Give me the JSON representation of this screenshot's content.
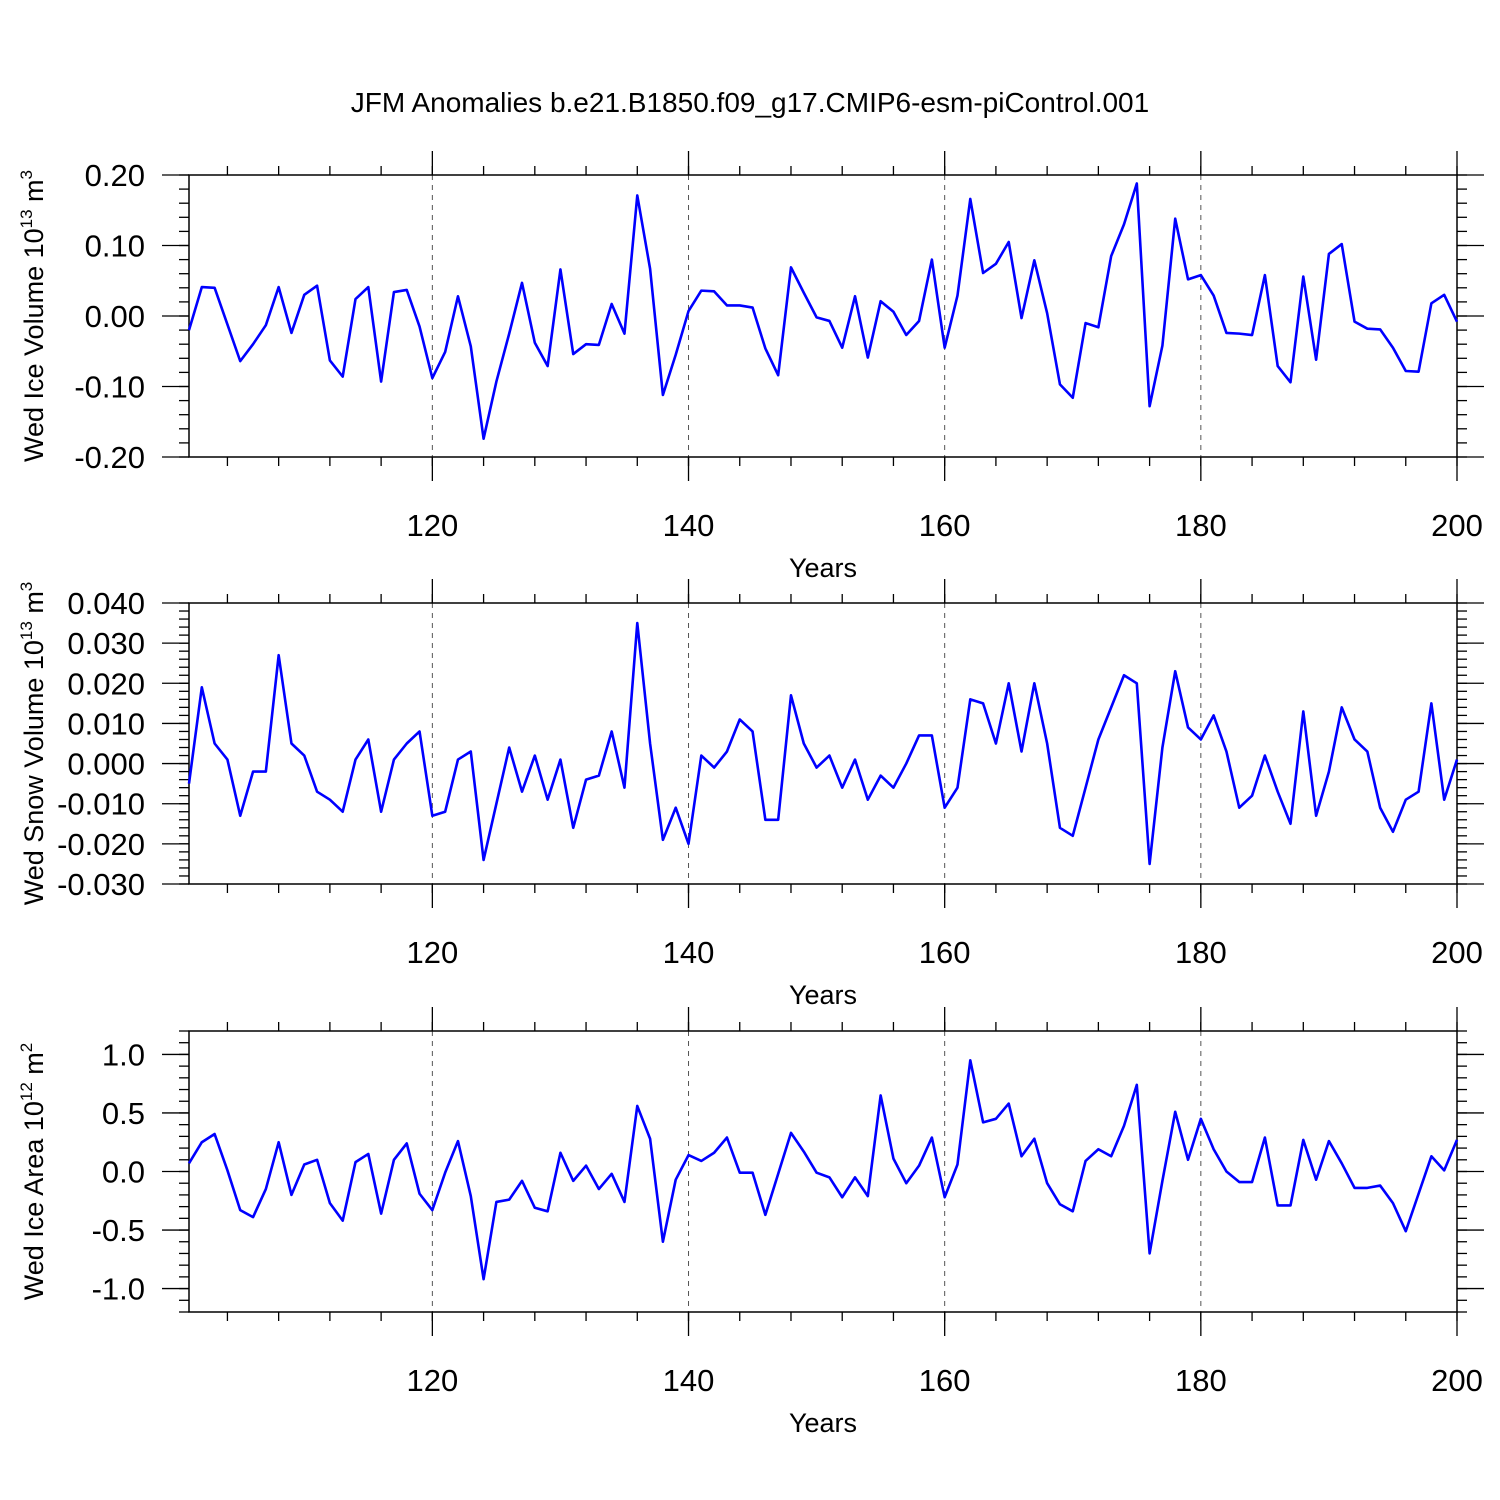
{
  "title": "JFM Anomalies b.e21.B1850.f09_g17.CMIP6-esm-piControl.001",
  "line_color": "#0000ff",
  "chart_data": [
    {
      "type": "line",
      "name": "ice-volume",
      "ylabel": "Wed Ice Volume 10",
      "ylabel_exp": "13",
      "ylabel_unit": " m",
      "ylabel_unit_exp": "3",
      "xlabel": "Years",
      "xlim": [
        101,
        200
      ],
      "ylim": [
        -0.2,
        0.2
      ],
      "yticks": [
        -0.2,
        -0.1,
        0.0,
        0.1,
        0.2
      ],
      "ytick_labels": [
        "-0.20",
        "-0.10",
        "0.00",
        "0.10",
        "0.20"
      ],
      "yminor_step": 0.02,
      "xticks": [
        120,
        140,
        160,
        180,
        200
      ],
      "xtick_labels": [
        "120",
        "140",
        "160",
        "180",
        "200"
      ],
      "xminor_step": 4,
      "grid_x": [
        120,
        140,
        160,
        180
      ],
      "x_start": 101,
      "values": [
        -0.02,
        0.041,
        0.04,
        -0.012,
        -0.064,
        -0.04,
        -0.013,
        0.041,
        -0.024,
        0.03,
        0.043,
        -0.063,
        -0.086,
        0.024,
        0.041,
        -0.093,
        0.034,
        0.037,
        -0.015,
        -0.088,
        -0.051,
        0.028,
        -0.043,
        -0.174,
        -0.093,
        -0.025,
        0.047,
        -0.038,
        -0.071,
        0.066,
        -0.054,
        -0.04,
        -0.041,
        0.017,
        -0.025,
        0.171,
        0.067,
        -0.112,
        -0.055,
        0.007,
        0.036,
        0.035,
        0.015,
        0.015,
        0.012,
        -0.046,
        -0.084,
        0.069,
        0.033,
        -0.002,
        -0.007,
        -0.045,
        0.028,
        -0.059,
        0.021,
        0.006,
        -0.027,
        -0.007,
        0.08,
        -0.045,
        0.029,
        0.166,
        0.061,
        0.074,
        0.105,
        -0.003,
        0.079,
        0.004,
        -0.097,
        -0.116,
        -0.01,
        -0.016,
        0.085,
        0.13,
        0.188,
        -0.128,
        -0.042,
        0.138,
        0.052,
        0.058,
        0.029,
        -0.024,
        -0.025,
        -0.027,
        0.058,
        -0.071,
        -0.094,
        0.056,
        -0.062,
        0.088,
        0.102,
        -0.008,
        -0.018,
        -0.019,
        -0.045,
        -0.078,
        -0.079,
        0.018,
        0.03,
        -0.008
      ]
    },
    {
      "type": "line",
      "name": "snow-volume",
      "ylabel": "Wed Snow Volume 10",
      "ylabel_exp": "13",
      "ylabel_unit": " m",
      "ylabel_unit_exp": "3",
      "xlabel": "Years",
      "xlim": [
        101,
        200
      ],
      "ylim": [
        -0.03,
        0.04
      ],
      "yticks": [
        -0.03,
        -0.02,
        -0.01,
        0.0,
        0.01,
        0.02,
        0.03,
        0.04
      ],
      "ytick_labels": [
        "-0.030",
        "-0.020",
        "-0.010",
        "0.000",
        "0.010",
        "0.020",
        "0.030",
        "0.040"
      ],
      "yminor_step": 0.002,
      "xticks": [
        120,
        140,
        160,
        180,
        200
      ],
      "xtick_labels": [
        "120",
        "140",
        "160",
        "180",
        "200"
      ],
      "xminor_step": 4,
      "grid_x": [
        120,
        140,
        160,
        180
      ],
      "x_start": 101,
      "values": [
        -0.005,
        0.019,
        0.005,
        0.001,
        -0.013,
        -0.002,
        -0.002,
        0.027,
        0.005,
        0.002,
        -0.007,
        -0.009,
        -0.012,
        0.001,
        0.006,
        -0.012,
        0.001,
        0.005,
        0.008,
        -0.013,
        -0.012,
        0.001,
        0.003,
        -0.024,
        -0.01,
        0.004,
        -0.007,
        0.002,
        -0.009,
        0.001,
        -0.016,
        -0.004,
        -0.003,
        0.008,
        -0.006,
        0.035,
        0.005,
        -0.019,
        -0.011,
        -0.02,
        0.002,
        -0.001,
        0.003,
        0.011,
        0.008,
        -0.014,
        -0.014,
        0.017,
        0.005,
        -0.001,
        0.002,
        -0.006,
        0.001,
        -0.009,
        -0.003,
        -0.006,
        0.0,
        0.007,
        0.007,
        -0.011,
        -0.006,
        0.016,
        0.015,
        0.005,
        0.02,
        0.003,
        0.02,
        0.005,
        -0.016,
        -0.018,
        -0.006,
        0.006,
        0.014,
        0.022,
        0.02,
        -0.025,
        0.004,
        0.023,
        0.009,
        0.006,
        0.012,
        0.003,
        -0.011,
        -0.008,
        0.002,
        -0.007,
        -0.015,
        0.013,
        -0.013,
        -0.002,
        0.014,
        0.006,
        0.003,
        -0.011,
        -0.017,
        -0.009,
        -0.007,
        0.015,
        -0.009,
        0.001
      ]
    },
    {
      "type": "line",
      "name": "ice-area",
      "ylabel": "Wed Ice Area 10",
      "ylabel_exp": "12",
      "ylabel_unit": " m",
      "ylabel_unit_exp": "2",
      "xlabel": "Years",
      "xlim": [
        101,
        200
      ],
      "ylim": [
        -1.2,
        1.2
      ],
      "yticks": [
        -1.0,
        -0.5,
        0.0,
        0.5,
        1.0
      ],
      "ytick_labels": [
        "-1.0",
        "-0.5",
        "0.0",
        "0.5",
        "1.0"
      ],
      "yminor_step": 0.1,
      "xticks": [
        120,
        140,
        160,
        180,
        200
      ],
      "xtick_labels": [
        "120",
        "140",
        "160",
        "180",
        "200"
      ],
      "xminor_step": 4,
      "grid_x": [
        120,
        140,
        160,
        180
      ],
      "x_start": 101,
      "values": [
        0.07,
        0.25,
        0.32,
        0.01,
        -0.33,
        -0.39,
        -0.15,
        0.25,
        -0.2,
        0.06,
        0.1,
        -0.27,
        -0.42,
        0.08,
        0.15,
        -0.36,
        0.1,
        0.24,
        -0.19,
        -0.33,
        -0.01,
        0.26,
        -0.21,
        -0.92,
        -0.26,
        -0.24,
        -0.08,
        -0.31,
        -0.34,
        0.16,
        -0.08,
        0.05,
        -0.15,
        -0.02,
        -0.26,
        0.56,
        0.28,
        -0.6,
        -0.07,
        0.14,
        0.09,
        0.16,
        0.29,
        -0.01,
        -0.01,
        -0.37,
        -0.02,
        0.33,
        0.17,
        -0.01,
        -0.05,
        -0.22,
        -0.05,
        -0.21,
        0.65,
        0.11,
        -0.1,
        0.05,
        0.29,
        -0.22,
        0.06,
        0.95,
        0.42,
        0.45,
        0.58,
        0.13,
        0.28,
        -0.1,
        -0.28,
        -0.34,
        0.09,
        0.19,
        0.13,
        0.39,
        0.74,
        -0.7,
        -0.08,
        0.51,
        0.1,
        0.45,
        0.19,
        0.0,
        -0.09,
        -0.09,
        0.29,
        -0.29,
        -0.29,
        0.27,
        -0.07,
        0.26,
        0.07,
        -0.14,
        -0.14,
        -0.12,
        -0.27,
        -0.51,
        -0.19,
        0.13,
        0.01,
        0.27
      ]
    }
  ]
}
